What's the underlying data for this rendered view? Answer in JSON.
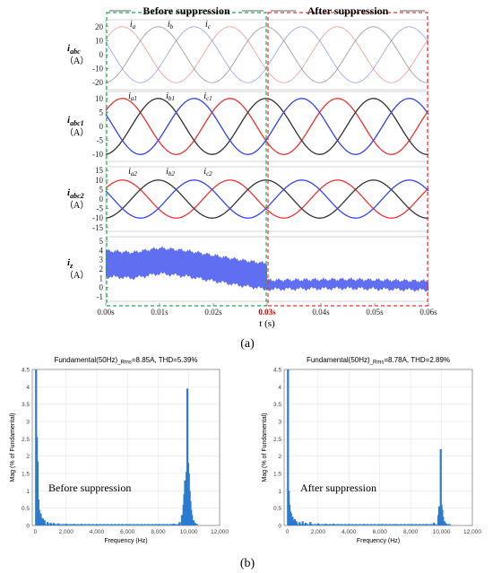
{
  "chart_data": [
    {
      "type": "line",
      "panel": "(a)",
      "top_labels": [
        "Before suppression",
        "After suppression"
      ],
      "xlabel": "t (s)",
      "xticks": [
        "0.00s",
        "0.01s",
        "0.02s",
        "0.03s",
        "0.04s",
        "0.05s",
        "0.06s"
      ],
      "xlim": [
        0,
        0.06
      ],
      "switch_time": 0.03,
      "switch_tick_color": "#dd0000",
      "box_colors": {
        "before": "#22aa55",
        "after": "#ee3333"
      },
      "subplots": [
        {
          "ylabel": [
            "i",
            "abc",
            "（A）"
          ],
          "yticks": [
            20,
            10,
            0,
            -10,
            -20
          ],
          "ylim": [
            -25,
            25
          ],
          "series_labels": [
            [
              "i",
              "a"
            ],
            [
              "i",
              "b"
            ],
            [
              "i",
              "c"
            ]
          ],
          "amplitude_before": 20,
          "amplitude_after": 20,
          "frequency_hz": 50,
          "faded": true,
          "colors": [
            "#ee3333",
            "#333333",
            "#3344ee"
          ]
        },
        {
          "ylabel": [
            "i",
            "abc1",
            "（A）"
          ],
          "yticks": [
            10,
            5,
            0,
            -5,
            -10
          ],
          "ylim": [
            -12.5,
            12.5
          ],
          "series_labels": [
            [
              "i",
              "a1"
            ],
            [
              "i",
              "b1"
            ],
            [
              "i",
              "c1"
            ]
          ],
          "amplitude_before": 10,
          "amplitude_after": 10,
          "frequency_hz": 50,
          "faded": false,
          "colors": [
            "#ee3333",
            "#333333",
            "#3344ee"
          ]
        },
        {
          "ylabel": [
            "i",
            "abc2",
            "（A）"
          ],
          "yticks": [
            15,
            10,
            5,
            0,
            -5,
            -10,
            -15
          ],
          "ylim": [
            -17,
            17
          ],
          "series_labels": [
            [
              "i",
              "a2"
            ],
            [
              "i",
              "b2"
            ],
            [
              "i",
              "c2"
            ]
          ],
          "amplitude_before": 10,
          "amplitude_after": 10,
          "frequency_hz": 50,
          "faded": false,
          "colors": [
            "#ee3333",
            "#333333",
            "#3344ee"
          ]
        },
        {
          "ylabel": [
            "i",
            "z",
            "（A）"
          ],
          "yticks": [
            5,
            4,
            3,
            2,
            1,
            0,
            -1
          ],
          "ylim": [
            -1.5,
            5.5
          ],
          "color": "#4455ee",
          "mean_before": [
            [
              0,
              2.6
            ],
            [
              0.005,
              2.4
            ],
            [
              0.01,
              2.9
            ],
            [
              0.015,
              2.6
            ],
            [
              0.02,
              2.1
            ],
            [
              0.025,
              1.6
            ],
            [
              0.03,
              1.2
            ]
          ],
          "band_before": 1.4,
          "mean_after": [
            [
              0.03,
              0.3
            ],
            [
              0.045,
              0.4
            ],
            [
              0.06,
              0.2
            ]
          ],
          "band_after": 0.5
        }
      ]
    },
    {
      "type": "bar",
      "panel": "(b)",
      "title": "Fundamental(50Hz)",
      "title_sub": "_Rms",
      "title_rest": "=8.85A, THD=5.39%",
      "annotation": "Before suppression",
      "xlabel": "Frequency (Hz)",
      "ylabel": "Mag (% of Fundamental)",
      "xticks": [
        0,
        2000,
        4000,
        6000,
        8000,
        10000,
        12000
      ],
      "xtick_labels": [
        "0",
        "2,000",
        "4,000",
        "6,000",
        "8,000",
        "10,000",
        "12,000"
      ],
      "yticks": [
        0,
        0.5,
        1,
        1.5,
        2,
        2.5,
        3,
        3.5,
        4,
        4.5
      ],
      "ylim": [
        0,
        4.5
      ],
      "xlim": [
        -200,
        12000
      ],
      "color": "#2b7bd0",
      "bars": [
        [
          50,
          4.5
        ],
        [
          100,
          2.55
        ],
        [
          150,
          1.85
        ],
        [
          200,
          0.75
        ],
        [
          250,
          0.45
        ],
        [
          300,
          0.3
        ],
        [
          350,
          0.35
        ],
        [
          400,
          0.22
        ],
        [
          500,
          0.2
        ],
        [
          600,
          0.15
        ],
        [
          800,
          0.1
        ],
        [
          1000,
          0.08
        ],
        [
          1200,
          0.07
        ],
        [
          1500,
          0.06
        ],
        [
          2000,
          0.05
        ],
        [
          2500,
          0.04
        ],
        [
          3000,
          0.04
        ],
        [
          4000,
          0.03
        ],
        [
          5000,
          0.02
        ],
        [
          6000,
          0.02
        ],
        [
          8000,
          0.03
        ],
        [
          9000,
          0.05
        ],
        [
          9400,
          0.1
        ],
        [
          9550,
          0.3
        ],
        [
          9650,
          0.6
        ],
        [
          9700,
          0.9
        ],
        [
          9750,
          1.3
        ],
        [
          9800,
          1.0
        ],
        [
          9850,
          1.55
        ],
        [
          9900,
          3.95
        ],
        [
          9950,
          1.8
        ],
        [
          10000,
          1.5
        ],
        [
          10050,
          1.0
        ],
        [
          10100,
          0.7
        ],
        [
          10150,
          0.45
        ],
        [
          10200,
          0.3
        ],
        [
          10300,
          0.15
        ],
        [
          10400,
          0.08
        ]
      ]
    },
    {
      "type": "bar",
      "panel": "(b)",
      "title": "Fundamental(50Hz)",
      "title_sub": "_Rms",
      "title_rest": "=8.78A, THD=2.89%",
      "annotation": "After suppression",
      "xlabel": "Frequency (Hz)",
      "ylabel": "Mag (% of Fundamental)",
      "xticks": [
        0,
        2000,
        4000,
        6000,
        8000,
        10000,
        12000
      ],
      "xtick_labels": [
        "0",
        "2,000",
        "4,000",
        "6,000",
        "8,000",
        "10,000",
        "12,000"
      ],
      "yticks": [
        0,
        0.5,
        1,
        1.5,
        2,
        2.5,
        3,
        3.5,
        4,
        4.5
      ],
      "ylim": [
        0,
        4.5
      ],
      "xlim": [
        -200,
        12000
      ],
      "color": "#2b7bd0",
      "bars": [
        [
          50,
          4.5
        ],
        [
          100,
          1.0
        ],
        [
          150,
          0.6
        ],
        [
          200,
          0.4
        ],
        [
          250,
          0.35
        ],
        [
          300,
          0.2
        ],
        [
          350,
          0.25
        ],
        [
          400,
          0.15
        ],
        [
          500,
          0.18
        ],
        [
          600,
          0.12
        ],
        [
          800,
          0.1
        ],
        [
          1000,
          0.12
        ],
        [
          1200,
          0.08
        ],
        [
          1500,
          0.1
        ],
        [
          2000,
          0.06
        ],
        [
          2500,
          0.05
        ],
        [
          3000,
          0.05
        ],
        [
          4000,
          0.04
        ],
        [
          5000,
          0.03
        ],
        [
          6000,
          0.03
        ],
        [
          7000,
          0.03
        ],
        [
          8000,
          0.03
        ],
        [
          9000,
          0.04
        ],
        [
          9500,
          0.08
        ],
        [
          9800,
          0.3
        ],
        [
          9850,
          0.55
        ],
        [
          9900,
          0.45
        ],
        [
          9950,
          2.2
        ],
        [
          10000,
          0.6
        ],
        [
          10050,
          0.45
        ],
        [
          10100,
          0.25
        ],
        [
          10200,
          0.12
        ],
        [
          10300,
          0.06
        ]
      ]
    }
  ],
  "captions": {
    "a": "(a)",
    "b": "(b)"
  }
}
